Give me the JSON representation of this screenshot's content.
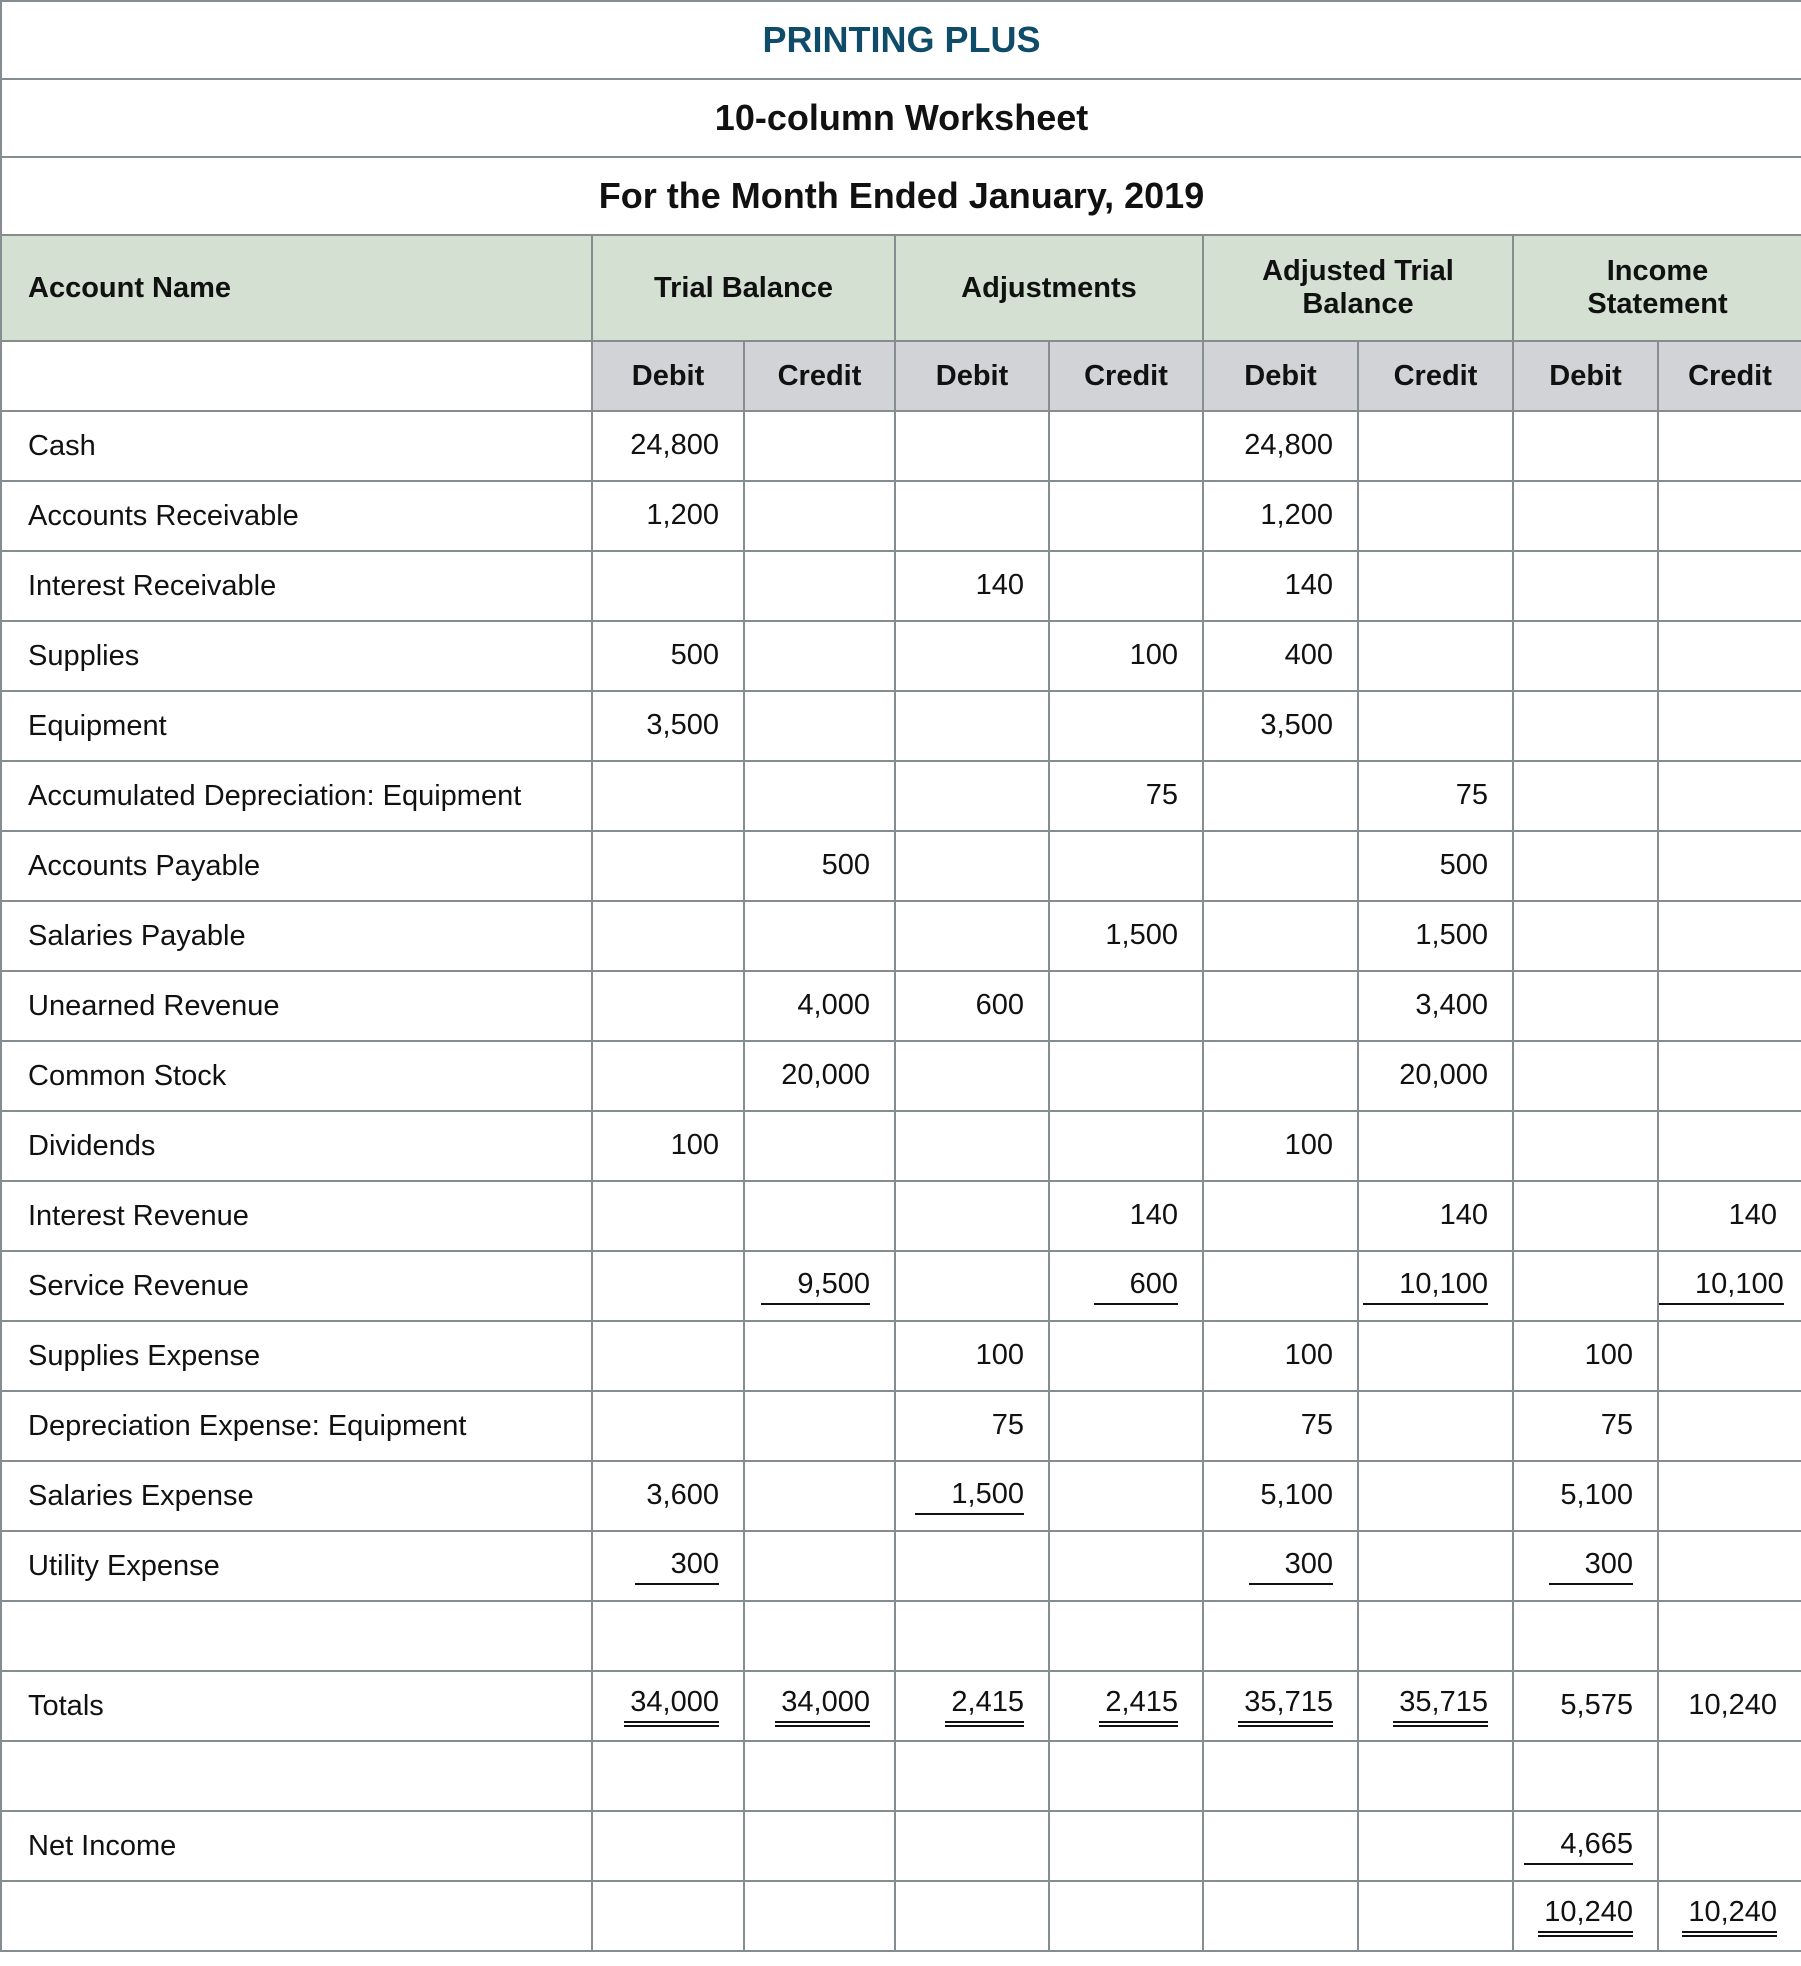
{
  "title": "PRINTING PLUS",
  "subtitle": "10-column Worksheet",
  "period": "For the Month Ended January, 2019",
  "colors": {
    "title": "#0f4c6a",
    "header_bg": "#d3e0d2",
    "subheader_bg": "#d1d3d6",
    "border": "#858d91"
  },
  "headers": {
    "account": "Account Name",
    "groups": [
      "Trial Balance",
      "Adjustments",
      "Adjusted Trial Balance",
      "Income Statement"
    ],
    "sub": [
      "Debit",
      "Credit",
      "Debit",
      "Credit",
      "Debit",
      "Credit",
      "Debit",
      "Credit"
    ]
  },
  "rows": [
    {
      "name": "Cash",
      "cells": [
        {
          "v": "24,800"
        },
        {},
        {},
        {},
        {
          "v": "24,800"
        },
        {},
        {},
        {}
      ]
    },
    {
      "name": "Accounts Receivable",
      "cells": [
        {
          "v": "1,200"
        },
        {},
        {},
        {},
        {
          "v": "1,200"
        },
        {},
        {},
        {}
      ]
    },
    {
      "name": "Interest Receivable",
      "cells": [
        {},
        {},
        {
          "v": "140"
        },
        {},
        {
          "v": "140"
        },
        {},
        {},
        {}
      ]
    },
    {
      "name": "Supplies",
      "cells": [
        {
          "v": "500"
        },
        {},
        {},
        {
          "v": "100"
        },
        {
          "v": "400"
        },
        {},
        {},
        {}
      ]
    },
    {
      "name": "Equipment",
      "cells": [
        {
          "v": "3,500"
        },
        {},
        {},
        {},
        {
          "v": "3,500"
        },
        {},
        {},
        {}
      ]
    },
    {
      "name": "Accumulated Depreciation: Equipment",
      "cells": [
        {},
        {},
        {},
        {
          "v": "75"
        },
        {},
        {
          "v": "75"
        },
        {},
        {}
      ]
    },
    {
      "name": "Accounts Payable",
      "cells": [
        {},
        {
          "v": "500"
        },
        {},
        {},
        {},
        {
          "v": "500"
        },
        {},
        {}
      ]
    },
    {
      "name": "Salaries Payable",
      "cells": [
        {},
        {},
        {},
        {
          "v": "1,500"
        },
        {},
        {
          "v": "1,500"
        },
        {},
        {}
      ]
    },
    {
      "name": "Unearned Revenue",
      "cells": [
        {},
        {
          "v": "4,000"
        },
        {
          "v": "600"
        },
        {},
        {},
        {
          "v": "3,400"
        },
        {},
        {}
      ]
    },
    {
      "name": "Common Stock",
      "cells": [
        {},
        {
          "v": "20,000"
        },
        {},
        {},
        {},
        {
          "v": "20,000"
        },
        {},
        {}
      ]
    },
    {
      "name": "Dividends",
      "cells": [
        {
          "v": "100"
        },
        {},
        {},
        {},
        {
          "v": "100"
        },
        {},
        {},
        {}
      ]
    },
    {
      "name": "Interest Revenue",
      "cells": [
        {},
        {},
        {},
        {
          "v": "140"
        },
        {},
        {
          "v": "140"
        },
        {},
        {
          "v": "140"
        }
      ]
    },
    {
      "name": "Service Revenue",
      "cells": [
        {},
        {
          "v": "9,500",
          "u": "single"
        },
        {},
        {
          "v": "600",
          "u": "single"
        },
        {},
        {
          "v": "10,100",
          "u": "single"
        },
        {},
        {
          "v": "10,100",
          "u": "single"
        }
      ]
    },
    {
      "name": "Supplies Expense",
      "cells": [
        {},
        {},
        {
          "v": "100"
        },
        {},
        {
          "v": "100"
        },
        {},
        {
          "v": "100"
        },
        {}
      ]
    },
    {
      "name": "Depreciation Expense: Equipment",
      "cells": [
        {},
        {},
        {
          "v": "75"
        },
        {},
        {
          "v": "75"
        },
        {},
        {
          "v": "75"
        },
        {}
      ]
    },
    {
      "name": "Salaries Expense",
      "cells": [
        {
          "v": "3,600"
        },
        {},
        {
          "v": "1,500",
          "u": "single"
        },
        {},
        {
          "v": "5,100"
        },
        {},
        {
          "v": "5,100"
        },
        {}
      ]
    },
    {
      "name": "Utility Expense",
      "cells": [
        {
          "v": "300",
          "u": "single"
        },
        {},
        {},
        {},
        {
          "v": "300",
          "u": "single"
        },
        {},
        {
          "v": "300",
          "u": "single"
        },
        {}
      ]
    },
    {
      "name": "",
      "cells": [
        {},
        {},
        {},
        {},
        {},
        {},
        {},
        {}
      ]
    },
    {
      "name": "Totals",
      "cells": [
        {
          "v": "34,000",
          "u": "double"
        },
        {
          "v": "34,000",
          "u": "double"
        },
        {
          "v": "2,415",
          "u": "double"
        },
        {
          "v": "2,415",
          "u": "double"
        },
        {
          "v": "35,715",
          "u": "double"
        },
        {
          "v": "35,715",
          "u": "double"
        },
        {
          "v": "5,575"
        },
        {
          "v": "10,240"
        }
      ]
    },
    {
      "name": "",
      "cells": [
        {},
        {},
        {},
        {},
        {},
        {},
        {},
        {}
      ]
    },
    {
      "name": "Net Income",
      "cells": [
        {},
        {},
        {},
        {},
        {},
        {},
        {
          "v": "4,665",
          "u": "single"
        },
        {}
      ]
    },
    {
      "name": "",
      "cells": [
        {},
        {},
        {},
        {},
        {},
        {},
        {
          "v": "10,240",
          "u": "double"
        },
        {
          "v": "10,240",
          "u": "double"
        }
      ]
    }
  ]
}
